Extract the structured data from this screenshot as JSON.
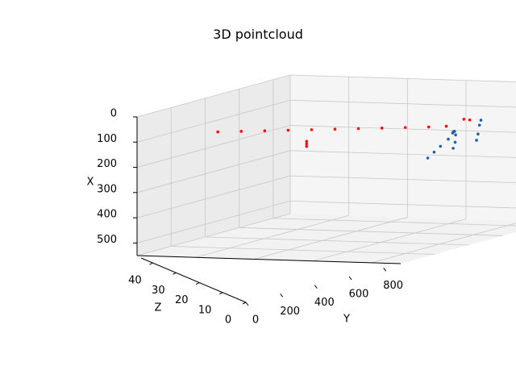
{
  "chart_data": {
    "type": "scatter",
    "title": "3D pointcloud",
    "xlabel": "X",
    "ylabel": "Y",
    "zlabel": "Z",
    "x_ticks": [
      "0",
      "100",
      "200",
      "300",
      "400",
      "500"
    ],
    "y_ticks": [
      "0",
      "200",
      "400",
      "600",
      "800"
    ],
    "z_ticks": [
      "0",
      "10",
      "20",
      "30",
      "40"
    ],
    "xlim": [
      0,
      550
    ],
    "ylim": [
      0,
      900
    ],
    "zlim": [
      0,
      45
    ],
    "grid": true,
    "series": [
      {
        "color": "#ff0000",
        "points": [
          {
            "x": 140,
            "y": 20,
            "z": 22
          },
          {
            "x": 135,
            "y": 100,
            "z": 22
          },
          {
            "x": 130,
            "y": 180,
            "z": 22
          },
          {
            "x": 125,
            "y": 260,
            "z": 22
          },
          {
            "x": 120,
            "y": 340,
            "z": 22
          },
          {
            "x": 115,
            "y": 420,
            "z": 22
          },
          {
            "x": 110,
            "y": 500,
            "z": 22
          },
          {
            "x": 105,
            "y": 580,
            "z": 22
          },
          {
            "x": 100,
            "y": 660,
            "z": 22
          },
          {
            "x": 95,
            "y": 740,
            "z": 22
          },
          {
            "x": 90,
            "y": 800,
            "z": 22
          },
          {
            "x": 175,
            "y": 300,
            "z": 24
          },
          {
            "x": 185,
            "y": 300,
            "z": 24
          },
          {
            "x": 195,
            "y": 300,
            "z": 24
          },
          {
            "x": 60,
            "y": 860,
            "z": 22
          },
          {
            "x": 62,
            "y": 880,
            "z": 22
          }
        ]
      },
      {
        "color": "#1f5fa8",
        "points": [
          {
            "x": 210,
            "y": 760,
            "z": 20
          },
          {
            "x": 190,
            "y": 770,
            "z": 21
          },
          {
            "x": 170,
            "y": 780,
            "z": 22
          },
          {
            "x": 145,
            "y": 795,
            "z": 23
          },
          {
            "x": 120,
            "y": 810,
            "z": 23
          },
          {
            "x": 110,
            "y": 825,
            "z": 22
          },
          {
            "x": 105,
            "y": 840,
            "z": 21
          },
          {
            "x": 115,
            "y": 855,
            "z": 20
          },
          {
            "x": 140,
            "y": 865,
            "z": 19
          },
          {
            "x": 160,
            "y": 870,
            "z": 18
          },
          {
            "x": 150,
            "y": 880,
            "z": 24
          },
          {
            "x": 125,
            "y": 885,
            "z": 24
          },
          {
            "x": 90,
            "y": 890,
            "z": 24
          },
          {
            "x": 70,
            "y": 895,
            "z": 24
          }
        ]
      }
    ]
  }
}
